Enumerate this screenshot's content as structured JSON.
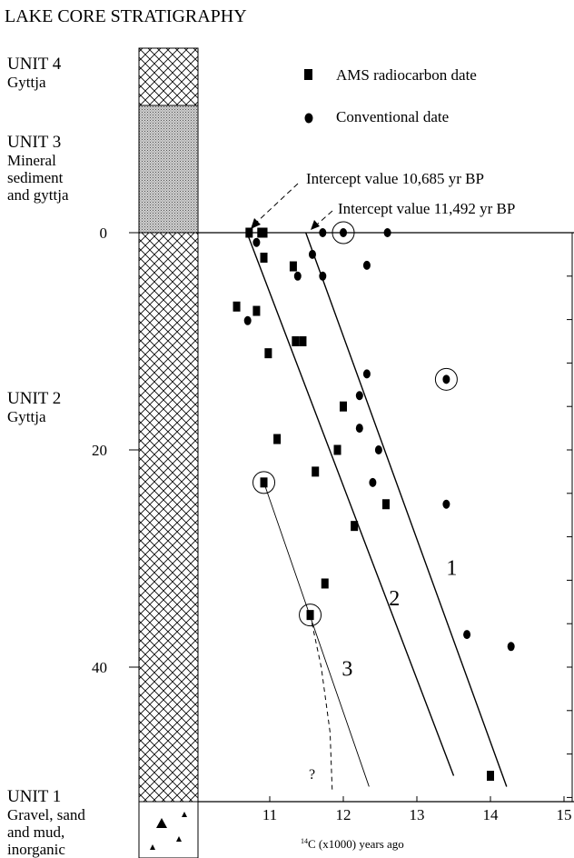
{
  "title": "LAKE CORE STRATIGRAPHY",
  "units": [
    {
      "name": "UNIT 4",
      "lines": [
        "Gyttja"
      ],
      "fill": "crosshatch"
    },
    {
      "name": "UNIT 3",
      "lines": [
        "Mineral",
        "sediment",
        "and gyttja"
      ],
      "fill": "stipple"
    },
    {
      "name": "UNIT 2",
      "lines": [
        "Gyttja"
      ],
      "fill": "crosshatch"
    },
    {
      "name": "UNIT 1",
      "lines": [
        "Gravel, sand",
        "and mud,",
        "inorganic"
      ],
      "fill": "triangles"
    }
  ],
  "legend": {
    "ams": "AMS radiocarbon date",
    "conventional": "Conventional date"
  },
  "annotations": {
    "intercept1": "Intercept value 10,685 yr BP",
    "intercept2": "Intercept value 11,492 yr BP",
    "question": "?"
  },
  "chart_data": {
    "type": "scatter",
    "title": "",
    "xlabel": "14C (x1000) years ago",
    "xlabel_sup": "14",
    "xlabel_rest": "C (x1000) years ago",
    "ylabel": "",
    "xlim": [
      10.2,
      15.2
    ],
    "ylim": [
      0,
      52
    ],
    "y_inverted": true,
    "x_ticks": [
      11,
      12,
      13,
      14,
      15
    ],
    "y_ticks": [
      0,
      20,
      40
    ],
    "series": [
      {
        "name": "AMS radiocarbon date",
        "marker": "square",
        "points": [
          [
            10.72,
            0
          ],
          [
            10.88,
            0
          ],
          [
            10.92,
            0
          ],
          [
            10.92,
            2.3
          ],
          [
            10.82,
            7.2
          ],
          [
            10.55,
            6.8
          ],
          [
            11.32,
            3.1
          ],
          [
            11.35,
            10.0
          ],
          [
            11.45,
            10.0
          ],
          [
            10.98,
            11.1
          ],
          [
            11.1,
            19.0
          ],
          [
            11.92,
            20.0
          ],
          [
            12.0,
            16.0
          ],
          [
            11.62,
            22.0
          ],
          [
            10.92,
            23.0
          ],
          [
            12.58,
            25.0
          ],
          [
            12.15,
            27.0
          ],
          [
            11.75,
            32.3
          ],
          [
            11.55,
            35.2
          ],
          [
            14.0,
            50.0
          ]
        ]
      },
      {
        "name": "Conventional date",
        "marker": "circle",
        "points": [
          [
            10.82,
            0.9
          ],
          [
            10.7,
            8.1
          ],
          [
            11.38,
            4.0
          ],
          [
            11.58,
            2.0
          ],
          [
            11.72,
            4.0
          ],
          [
            11.72,
            0
          ],
          [
            12.0,
            0
          ],
          [
            12.6,
            0
          ],
          [
            12.32,
            3.0
          ],
          [
            12.32,
            13.0
          ],
          [
            12.22,
            15.0
          ],
          [
            12.22,
            18.0
          ],
          [
            12.48,
            20.0
          ],
          [
            12.4,
            23.0
          ],
          [
            13.4,
            13.5
          ],
          [
            13.4,
            25.0
          ],
          [
            13.68,
            37.0
          ],
          [
            14.28,
            38.1
          ]
        ]
      }
    ],
    "circled_points": [
      [
        12.0,
        0
      ],
      [
        13.4,
        13.5
      ],
      [
        10.92,
        23.0
      ],
      [
        11.55,
        35.2
      ]
    ],
    "fit_lines": [
      {
        "name": "1",
        "from": [
          11.49,
          0
        ],
        "to": [
          14.22,
          51.0
        ]
      },
      {
        "name": "2",
        "from": [
          10.69,
          0
        ],
        "to": [
          13.5,
          50.0
        ]
      },
      {
        "name": "3",
        "from": [
          10.92,
          23.0
        ],
        "to": [
          12.35,
          51.0
        ]
      }
    ],
    "dashed_curve": [
      [
        11.55,
        35.2
      ],
      [
        11.7,
        40
      ],
      [
        11.82,
        46
      ],
      [
        11.85,
        51.5
      ]
    ]
  }
}
